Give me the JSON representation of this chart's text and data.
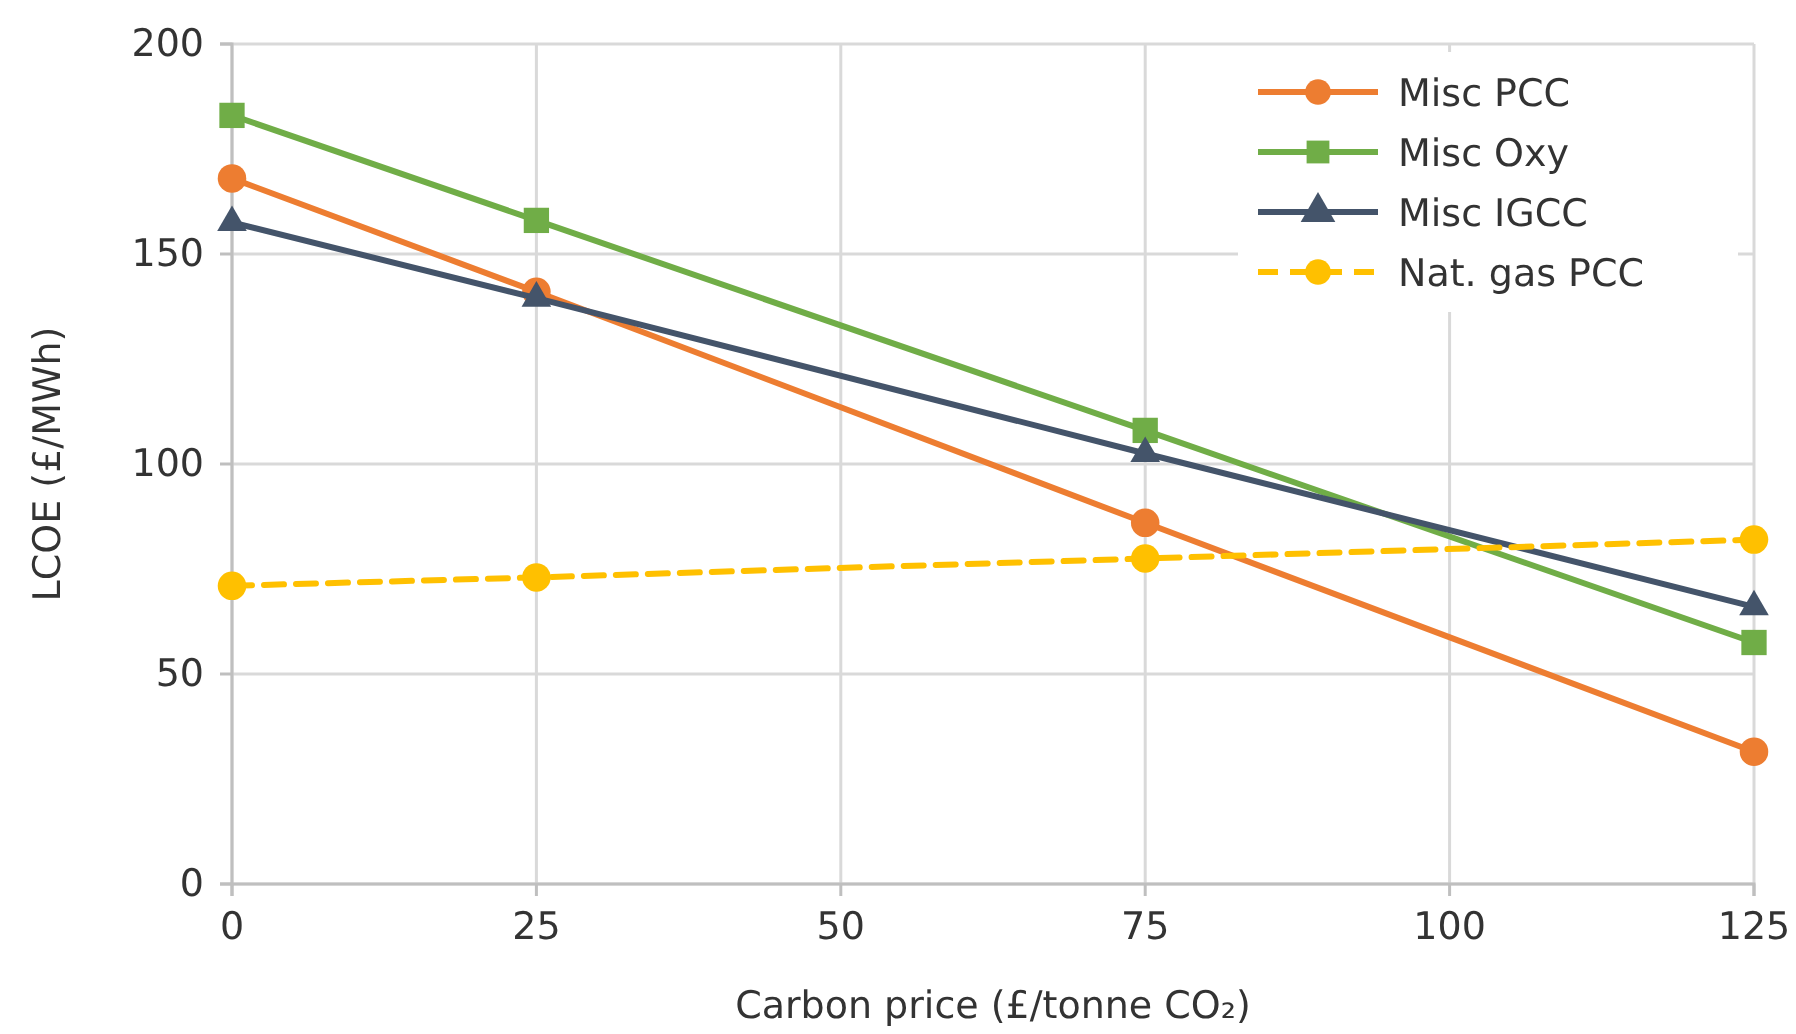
{
  "chart_data": {
    "type": "line",
    "xlabel": "Carbon price (£/tonne CO₂)",
    "ylabel": "LCOE (£/MWh)",
    "x": [
      0,
      25,
      75,
      125
    ],
    "series": [
      {
        "name": "Misc PCC",
        "color": "#ed7d31",
        "values": [
          168,
          141,
          86,
          31.5
        ],
        "marker": "circle",
        "line_style": "solid"
      },
      {
        "name": "Misc Oxy",
        "color": "#70ad47",
        "values": [
          183,
          158,
          108,
          57.5
        ],
        "marker": "square",
        "line_style": "solid"
      },
      {
        "name": "Misc IGCC",
        "color": "#44546a",
        "values": [
          157.5,
          139.5,
          102.5,
          66
        ],
        "marker": "triangle",
        "line_style": "solid"
      },
      {
        "name": "Nat. gas PCC",
        "color": "#ffc000",
        "values": [
          71,
          73,
          77.5,
          82
        ],
        "marker": "circle",
        "line_style": "dashed"
      }
    ],
    "xlim": [
      0,
      125
    ],
    "xticks": [
      0,
      25,
      50,
      75,
      100,
      125
    ],
    "ylim": [
      0,
      200
    ],
    "yticks": [
      0,
      50,
      100,
      150,
      200
    ],
    "grid": true,
    "legend": "top right"
  }
}
